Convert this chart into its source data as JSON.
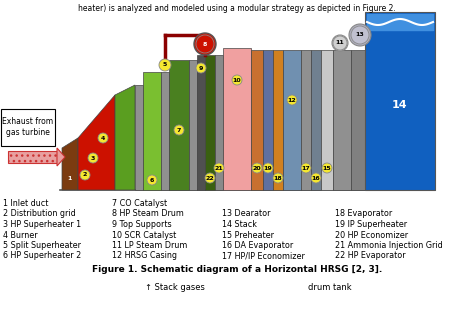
{
  "title": "Figure 1. Schematic diagram of a Horizontal HRSG [2, 3].",
  "header_text": "heater) is analyzed and modeled using a modular strategy as depicted in Figure 2.",
  "exhaust_label": "Exhaust from\ngas turbine",
  "bottom_labels_col1": [
    "1 Inlet duct",
    "2 Distribution grid",
    "3 HP Superheater 1",
    "4 Burner",
    "5 Split Superheater",
    "6 HP Superheater 2"
  ],
  "bottom_labels_col2": [
    "7 CO Catalyst",
    "8 HP Steam Drum",
    "9 Top Supports",
    "10 SCR Catalyst",
    "11 LP Steam Drum",
    "12 HRSG Casing"
  ],
  "bottom_labels_col3": [
    "",
    "13 Dearator",
    "14 Stack",
    "15 Preheater",
    "16 DA Evaporator",
    "17 HP/IP Economizer"
  ],
  "bottom_labels_col4": [
    "",
    "18 Evaporator",
    "19 IP Superheater",
    "20 HP Economizer",
    "21 Ammonia Injection Grid",
    "22 HP Evaporator"
  ],
  "footer_text1": "↑ Stack gases",
  "footer_text2": "drum tank",
  "bg_color": "#ffffff"
}
